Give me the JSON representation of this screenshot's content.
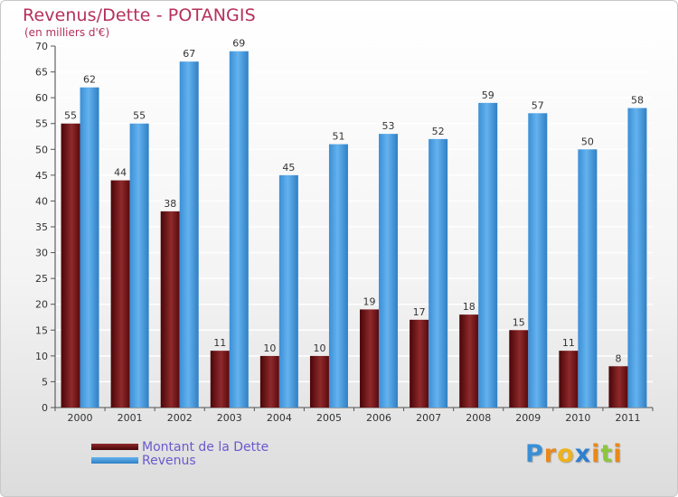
{
  "chart_data": {
    "type": "bar",
    "title": "Revenus/Dette - POTANGIS",
    "subtitle": "(en milliers d'€)",
    "categories": [
      "2000",
      "2001",
      "2002",
      "2003",
      "2004",
      "2005",
      "2006",
      "2007",
      "2008",
      "2009",
      "2010",
      "2011"
    ],
    "series": [
      {
        "name": "Montant de la Dette",
        "values": [
          55,
          44,
          38,
          11,
          10,
          10,
          19,
          17,
          18,
          15,
          11,
          8
        ],
        "color": "#6b0d10"
      },
      {
        "name": "Revenus",
        "values": [
          62,
          55,
          67,
          69,
          45,
          51,
          53,
          52,
          59,
          57,
          50,
          58
        ],
        "color": "#4a9fe0"
      }
    ],
    "ylim": [
      0,
      70
    ],
    "yticks": [
      0,
      5,
      10,
      15,
      20,
      25,
      30,
      35,
      40,
      45,
      50,
      55,
      60,
      65,
      70
    ],
    "grid": true,
    "legend": "bottom-left"
  },
  "logo": {
    "text": "Proxiti",
    "letters": [
      "P",
      "r",
      "o",
      "x",
      "i",
      "t",
      "i"
    ],
    "colors": [
      "#3a8fd6",
      "#e8891a",
      "#f0b21b",
      "#2e7fd0",
      "#e8891a",
      "#8dc63f",
      "#e8891a"
    ]
  }
}
